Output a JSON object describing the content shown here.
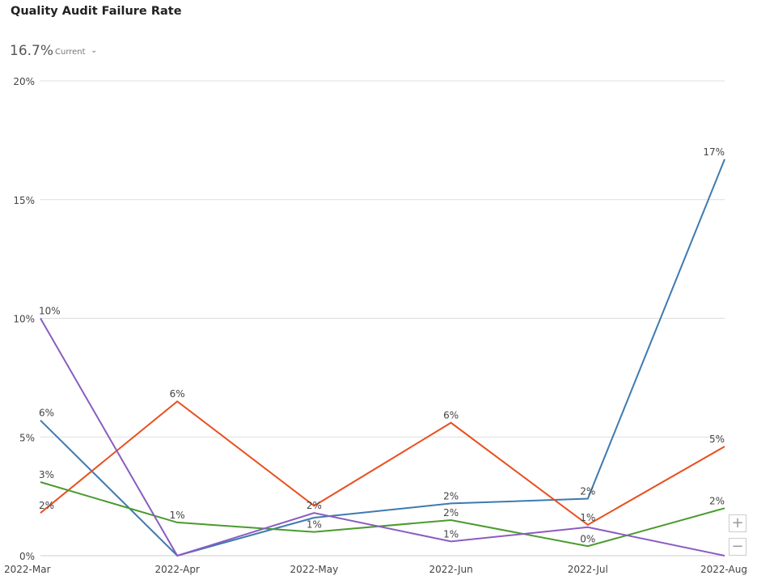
{
  "header": {
    "title": "Quality Audit Failure Rate",
    "current_value": "16.7%",
    "current_label": "Current",
    "dropdown_icon": "chevron-down-icon"
  },
  "zoom": {
    "zoom_in": "+",
    "zoom_out": "−"
  },
  "chart_data": {
    "type": "line",
    "title": "Quality Audit Failure Rate",
    "categories": [
      "2022-Mar",
      "2022-Apr",
      "2022-May",
      "2022-Jun",
      "2022-Jul",
      "2022-Aug"
    ],
    "ylim": [
      0,
      20
    ],
    "yticks": [
      "0%",
      "5%",
      "10%",
      "15%",
      "20%"
    ],
    "ytick_values": [
      0,
      5,
      10,
      15,
      20
    ],
    "grid": true,
    "series": [
      {
        "color": "#3d7ab0",
        "values": [
          5.7,
          0,
          1.6,
          2.2,
          2.4,
          16.7
        ],
        "labels": [
          "6%",
          null,
          null,
          "2%",
          "2%",
          "17%"
        ]
      },
      {
        "color": "#e8501e",
        "values": [
          1.8,
          6.5,
          2.1,
          5.6,
          1.3,
          4.6
        ],
        "labels": [
          "2%",
          "6%",
          null,
          "6%",
          "1%",
          "5%"
        ]
      },
      {
        "color": "#4a9a2e",
        "values": [
          3.1,
          1.4,
          1.0,
          1.5,
          0.4,
          2.0
        ],
        "labels": [
          "3%",
          "1%",
          "1%",
          "2%",
          "0%",
          "2%"
        ]
      },
      {
        "color": "#8a5cc0",
        "values": [
          10,
          0,
          1.8,
          0.6,
          1.2,
          0
        ],
        "labels": [
          "10%",
          null,
          "2%",
          "1%",
          null,
          null
        ]
      }
    ]
  }
}
